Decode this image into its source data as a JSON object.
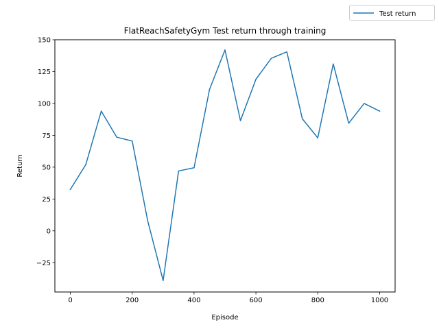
{
  "chart_data": {
    "type": "line",
    "title": "FlatReachSafetyGym Test return through training",
    "xlabel": "Episode",
    "ylabel": "Return",
    "x": [
      0,
      50,
      100,
      150,
      200,
      250,
      300,
      350,
      400,
      450,
      500,
      550,
      600,
      650,
      700,
      750,
      800,
      850,
      900,
      950,
      1000
    ],
    "series": [
      {
        "name": "Test return",
        "color": "#1f77b4",
        "values": [
          32.5,
          52,
          94,
          73.5,
          70.5,
          8,
          -39,
          47,
          49.5,
          111,
          142,
          86.5,
          119,
          135.5,
          140.5,
          88,
          73,
          131,
          84.5,
          100,
          94
        ]
      }
    ],
    "xlim": [
      -50,
      1050
    ],
    "ylim": [
      -48,
      150
    ],
    "xticks": [
      0,
      200,
      400,
      600,
      800,
      1000
    ],
    "yticks": [
      -25,
      0,
      25,
      50,
      75,
      100,
      125,
      150
    ],
    "grid": false,
    "legend_position": "top-right, outside plot"
  }
}
